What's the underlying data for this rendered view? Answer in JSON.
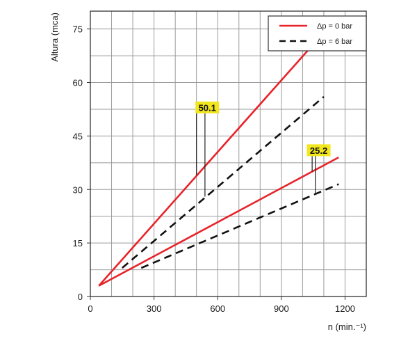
{
  "chart_data": {
    "type": "line",
    "xlabel": "n (min.⁻¹)",
    "ylabel": "Altura (mca)",
    "xlim": [
      0,
      1300
    ],
    "ylim": [
      0,
      80
    ],
    "xticks": [
      0,
      300,
      600,
      900,
      1200
    ],
    "yticks": [
      0,
      15,
      30,
      45,
      60,
      75
    ],
    "grid": true,
    "legend_position": "top-right",
    "legend": [
      {
        "label": "Δp = 0 bar",
        "style": "solid",
        "color": "#e8232a"
      },
      {
        "label": "Δp = 6 bar",
        "style": "dashed",
        "color": "#111111"
      }
    ],
    "series": [
      {
        "group": "Δp = 0 bar",
        "style": "solid",
        "color": "#e8232a",
        "x": [
          40,
          1040
        ],
        "y": [
          3,
          70
        ]
      },
      {
        "group": "Δp = 6 bar",
        "style": "dashed",
        "color": "#111111",
        "x": [
          150,
          1100
        ],
        "y": [
          8,
          56
        ]
      },
      {
        "group": "Δp = 0 bar",
        "style": "solid",
        "color": "#e8232a",
        "x": [
          40,
          1170
        ],
        "y": [
          3,
          39
        ]
      },
      {
        "group": "Δp = 6 bar",
        "style": "dashed",
        "color": "#111111",
        "x": [
          240,
          1170
        ],
        "y": [
          8,
          31.5
        ]
      }
    ],
    "annotations": [
      {
        "text": "50.1",
        "bg": "#f2e61e",
        "label_x": 505,
        "label_y": 53,
        "markers": [
          {
            "x": 500,
            "y": 34
          },
          {
            "x": 540,
            "y": 28
          }
        ]
      },
      {
        "text": "25.2",
        "bg": "#f2e61e",
        "label_x": 1030,
        "label_y": 41,
        "markers": [
          {
            "x": 1045,
            "y": 35
          },
          {
            "x": 1060,
            "y": 28.5
          }
        ]
      }
    ]
  }
}
